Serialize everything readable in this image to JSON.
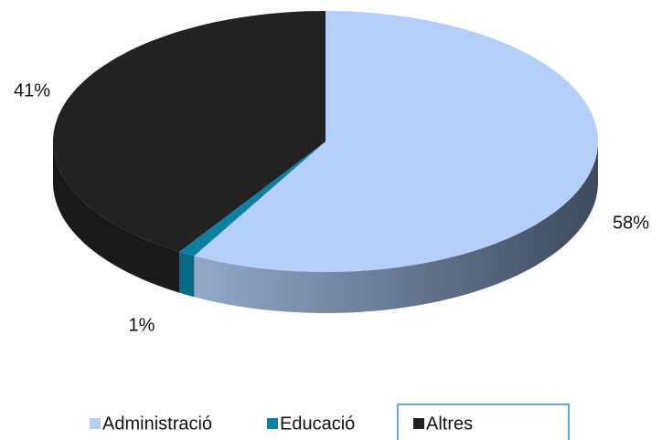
{
  "chart_data": {
    "type": "pie",
    "categories": [
      "Administració",
      "Educació",
      "Altres"
    ],
    "values": [
      58,
      1,
      41
    ],
    "value_labels": [
      "58%",
      "1%",
      "41%"
    ],
    "colors": [
      "#b3cffa",
      "#0f7fa0",
      "#222222"
    ],
    "legend": "bottom"
  }
}
